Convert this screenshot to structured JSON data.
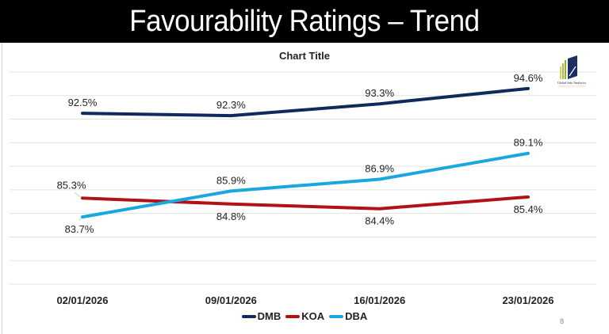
{
  "slide": {
    "title": "Favourability Ratings – Trend",
    "page_number": "8",
    "logo": {
      "icon": "analytics-logo-icon",
      "text": "Global Info Analytics"
    }
  },
  "chart_data": {
    "type": "line",
    "title": "Chart Title",
    "xlabel": "",
    "ylabel": "",
    "categories": [
      "02/01/2026",
      "09/01/2026",
      "16/01/2026",
      "23/01/2026"
    ],
    "ylim": [
      78,
      96
    ],
    "ytick_step": 2,
    "grid": true,
    "y_axis_labels_visible": false,
    "legend_position": "bottom",
    "series": [
      {
        "name": "DMB",
        "color": "#0f2a5c",
        "values": [
          92.5,
          92.3,
          93.3,
          94.6
        ],
        "labels": [
          "92.5%",
          "92.3%",
          "93.3%",
          "94.6%"
        ],
        "label_pos": [
          "above",
          "above",
          "above",
          "above"
        ]
      },
      {
        "name": "KOA",
        "color": "#b01217",
        "values": [
          85.3,
          84.8,
          84.4,
          85.4
        ],
        "labels": [
          "85.3%",
          "84.8%",
          "84.4%",
          "85.4%"
        ],
        "label_pos": [
          "above-left",
          "below",
          "below",
          "below"
        ]
      },
      {
        "name": "DBA",
        "color": "#1aa6df",
        "values": [
          83.7,
          85.9,
          86.9,
          89.1
        ],
        "labels": [
          "83.7%",
          "85.9%",
          "86.9%",
          "89.1%"
        ],
        "label_pos": [
          "below-left",
          "above",
          "above",
          "above"
        ]
      }
    ]
  }
}
